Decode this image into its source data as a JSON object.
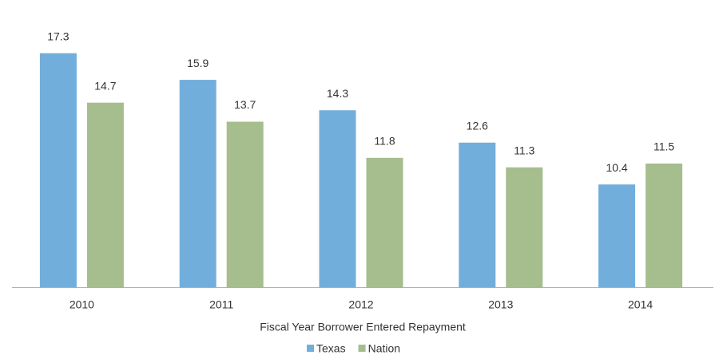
{
  "chart_data": {
    "type": "bar",
    "x_label": "Fiscal Year Borrower Entered Repayment",
    "categories": [
      "2010",
      "2011",
      "2012",
      "2013",
      "2014"
    ],
    "series": [
      {
        "name": "Texas",
        "color": "#72aedb",
        "values": [
          17.3,
          15.9,
          14.3,
          12.6,
          10.4
        ]
      },
      {
        "name": "Nation",
        "color": "#a6bd8d",
        "values": [
          14.7,
          13.7,
          11.8,
          11.3,
          11.5
        ]
      }
    ],
    "ylim": [
      5,
      18
    ]
  }
}
